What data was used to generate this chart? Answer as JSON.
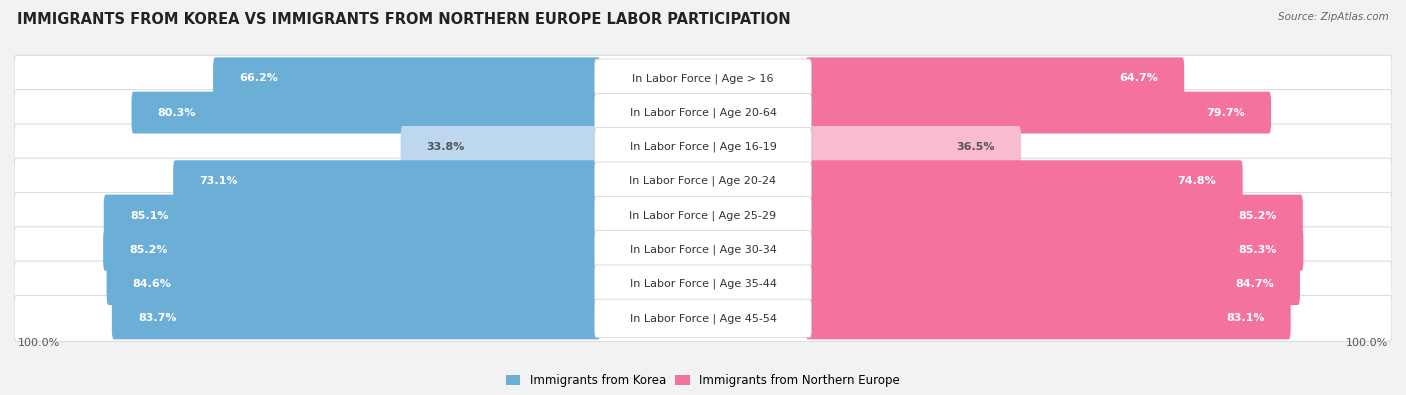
{
  "title": "IMMIGRANTS FROM KOREA VS IMMIGRANTS FROM NORTHERN EUROPE LABOR PARTICIPATION",
  "source": "Source: ZipAtlas.com",
  "categories": [
    "In Labor Force | Age > 16",
    "In Labor Force | Age 20-64",
    "In Labor Force | Age 16-19",
    "In Labor Force | Age 20-24",
    "In Labor Force | Age 25-29",
    "In Labor Force | Age 30-34",
    "In Labor Force | Age 35-44",
    "In Labor Force | Age 45-54"
  ],
  "korea_values": [
    66.2,
    80.3,
    33.8,
    73.1,
    85.1,
    85.2,
    84.6,
    83.7
  ],
  "northern_europe_values": [
    64.7,
    79.7,
    36.5,
    74.8,
    85.2,
    85.3,
    84.7,
    83.1
  ],
  "korea_color": "#6BAED6",
  "korea_color_light": "#BDD7EE",
  "northern_europe_color": "#F472A0",
  "northern_europe_color_light": "#F9BBCF",
  "row_bg_odd": "#EFEFEF",
  "row_bg_even": "#F8F8F8",
  "label_color_white": "#FFFFFF",
  "label_color_dark": "#555555",
  "legend_korea": "Immigrants from Korea",
  "legend_northern_europe": "Immigrants from Northern Europe",
  "max_value": 100.0,
  "title_fontsize": 10.5,
  "label_fontsize": 8.0,
  "value_fontsize": 8.0,
  "tick_fontsize": 8.0
}
